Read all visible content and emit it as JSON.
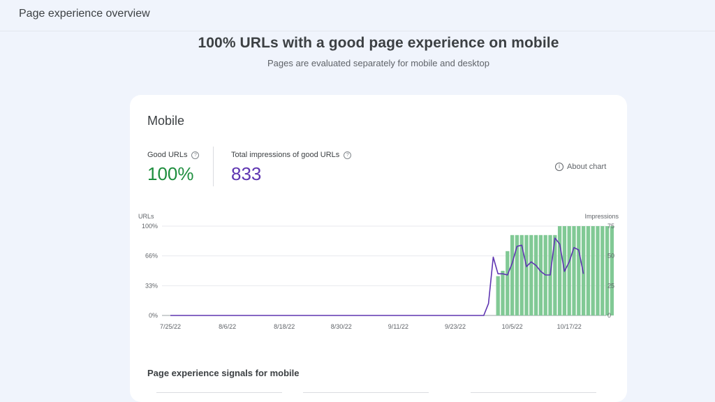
{
  "header": {
    "title": "Page experience overview"
  },
  "summary": {
    "headline": "100% URLs with a good page experience on mobile",
    "subtitle": "Pages are evaluated separately for mobile and desktop"
  },
  "card": {
    "title": "Mobile",
    "metrics": [
      {
        "label": "Good URLs",
        "value": "100%"
      },
      {
        "label": "Total impressions of good URLs",
        "value": "833"
      }
    ],
    "about_chart": "About chart",
    "signals_title": "Page experience signals for mobile"
  },
  "colors": {
    "good": "#1e8e3e",
    "impressions": "#5e35b1",
    "bar": "#81c995"
  },
  "chart_data": {
    "type": "bar",
    "y_left_label": "URLs",
    "y_right_label": "Impressions",
    "y_left_ticks": [
      "0%",
      "33%",
      "66%",
      "100%"
    ],
    "y_left_range": [
      0,
      100
    ],
    "y_right_ticks": [
      "0",
      "25",
      "50",
      "75"
    ],
    "y_right_range": [
      0,
      75
    ],
    "x_tick_labels": [
      "7/25/22",
      "8/6/22",
      "8/18/22",
      "8/30/22",
      "9/11/22",
      "9/23/22",
      "10/5/22",
      "10/17/22"
    ],
    "first_date": "7/25/22",
    "num_days": 91,
    "series": [
      {
        "name": "Good URLs",
        "kind": "bar",
        "axis": "left",
        "start_date": "10/2/22",
        "values": [
          44,
          50,
          72,
          90,
          90,
          90,
          90,
          90,
          90,
          90,
          90,
          90,
          90,
          100,
          100,
          100,
          100,
          100,
          100,
          100,
          100,
          100,
          100,
          100,
          100
        ]
      },
      {
        "name": "Impressions",
        "kind": "line",
        "axis": "right",
        "points": [
          [
            "7/25/22",
            0
          ],
          [
            "9/29/22",
            0
          ],
          [
            "9/30/22",
            10
          ],
          [
            "10/1/22",
            49
          ],
          [
            "10/2/22",
            35
          ],
          [
            "10/3/22",
            35
          ],
          [
            "10/4/22",
            34
          ],
          [
            "10/5/22",
            44
          ],
          [
            "10/6/22",
            58
          ],
          [
            "10/7/22",
            59
          ],
          [
            "10/8/22",
            41
          ],
          [
            "10/9/22",
            45
          ],
          [
            "10/10/22",
            42
          ],
          [
            "10/11/22",
            37
          ],
          [
            "10/12/22",
            34
          ],
          [
            "10/13/22",
            34
          ],
          [
            "10/14/22",
            65
          ],
          [
            "10/15/22",
            60
          ],
          [
            "10/16/22",
            37
          ],
          [
            "10/17/22",
            45
          ],
          [
            "10/18/22",
            57
          ],
          [
            "10/19/22",
            55
          ],
          [
            "10/20/22",
            35
          ]
        ]
      }
    ],
    "grid": true
  }
}
